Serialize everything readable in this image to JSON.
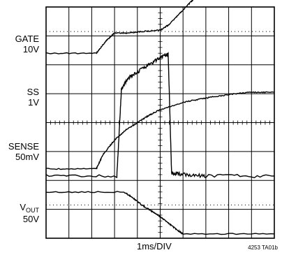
{
  "chart_data": {
    "type": "line",
    "title": "",
    "xlabel": "1ms/DIV",
    "figure_id": "4253 TA01b",
    "grid": "on",
    "divisions": {
      "x": 10,
      "y": 8
    },
    "x_unit": "ms",
    "x_per_div": 1,
    "channels": [
      {
        "name": "GATE",
        "scale": "10V",
        "vdiv": 10,
        "x": [
          0,
          2.2,
          2.6,
          3,
          3.6,
          4.2,
          5,
          5.4,
          6,
          6.5,
          7,
          7.5,
          8,
          9,
          10
        ],
        "y": [
          2.4,
          2.4,
          2.8,
          3.1,
          3.1,
          3.15,
          3.2,
          3.4,
          3.9,
          4.3,
          4.6,
          4.7,
          4.7,
          4.7,
          4.7
        ]
      },
      {
        "name": "SS",
        "scale": "1V",
        "vdiv": 1,
        "x": [
          0,
          2.2,
          2.5,
          3,
          3.5,
          4,
          4.5,
          5,
          6,
          7,
          8,
          9,
          10
        ],
        "y": [
          0.4,
          0.4,
          0.9,
          1.4,
          1.75,
          2.0,
          2.25,
          2.45,
          2.7,
          2.85,
          2.97,
          3.05,
          3.05
        ]
      },
      {
        "name": "SENSE",
        "scale": "50mV",
        "vdiv": 50,
        "x": [
          0,
          3.1,
          3.3,
          3.6,
          4.2,
          4.8,
          5.3,
          5.35,
          5.5,
          6,
          7,
          10
        ],
        "y": [
          0,
          0,
          3.0,
          3.4,
          3.7,
          4.0,
          4.2,
          4.2,
          0.1,
          0.05,
          0,
          0
        ]
      },
      {
        "name": "VOUT",
        "scale": "50V",
        "vdiv": 50,
        "x": [
          0,
          3.4,
          3.8,
          4.2,
          4.6,
          5,
          5.4,
          5.8,
          6,
          10
        ],
        "y": [
          1.6,
          1.6,
          1.4,
          1.15,
          0.95,
          0.75,
          0.5,
          0.25,
          0.15,
          0.15
        ]
      }
    ],
    "labels": {
      "gate_name": "GATE",
      "gate_scale": "10V",
      "ss_name": "SS",
      "ss_scale": "1V",
      "sense_name": "SENSE",
      "sense_scale": "50mV",
      "vout_name_main": "V",
      "vout_name_sub": "OUT",
      "vout_scale": "50V"
    }
  }
}
